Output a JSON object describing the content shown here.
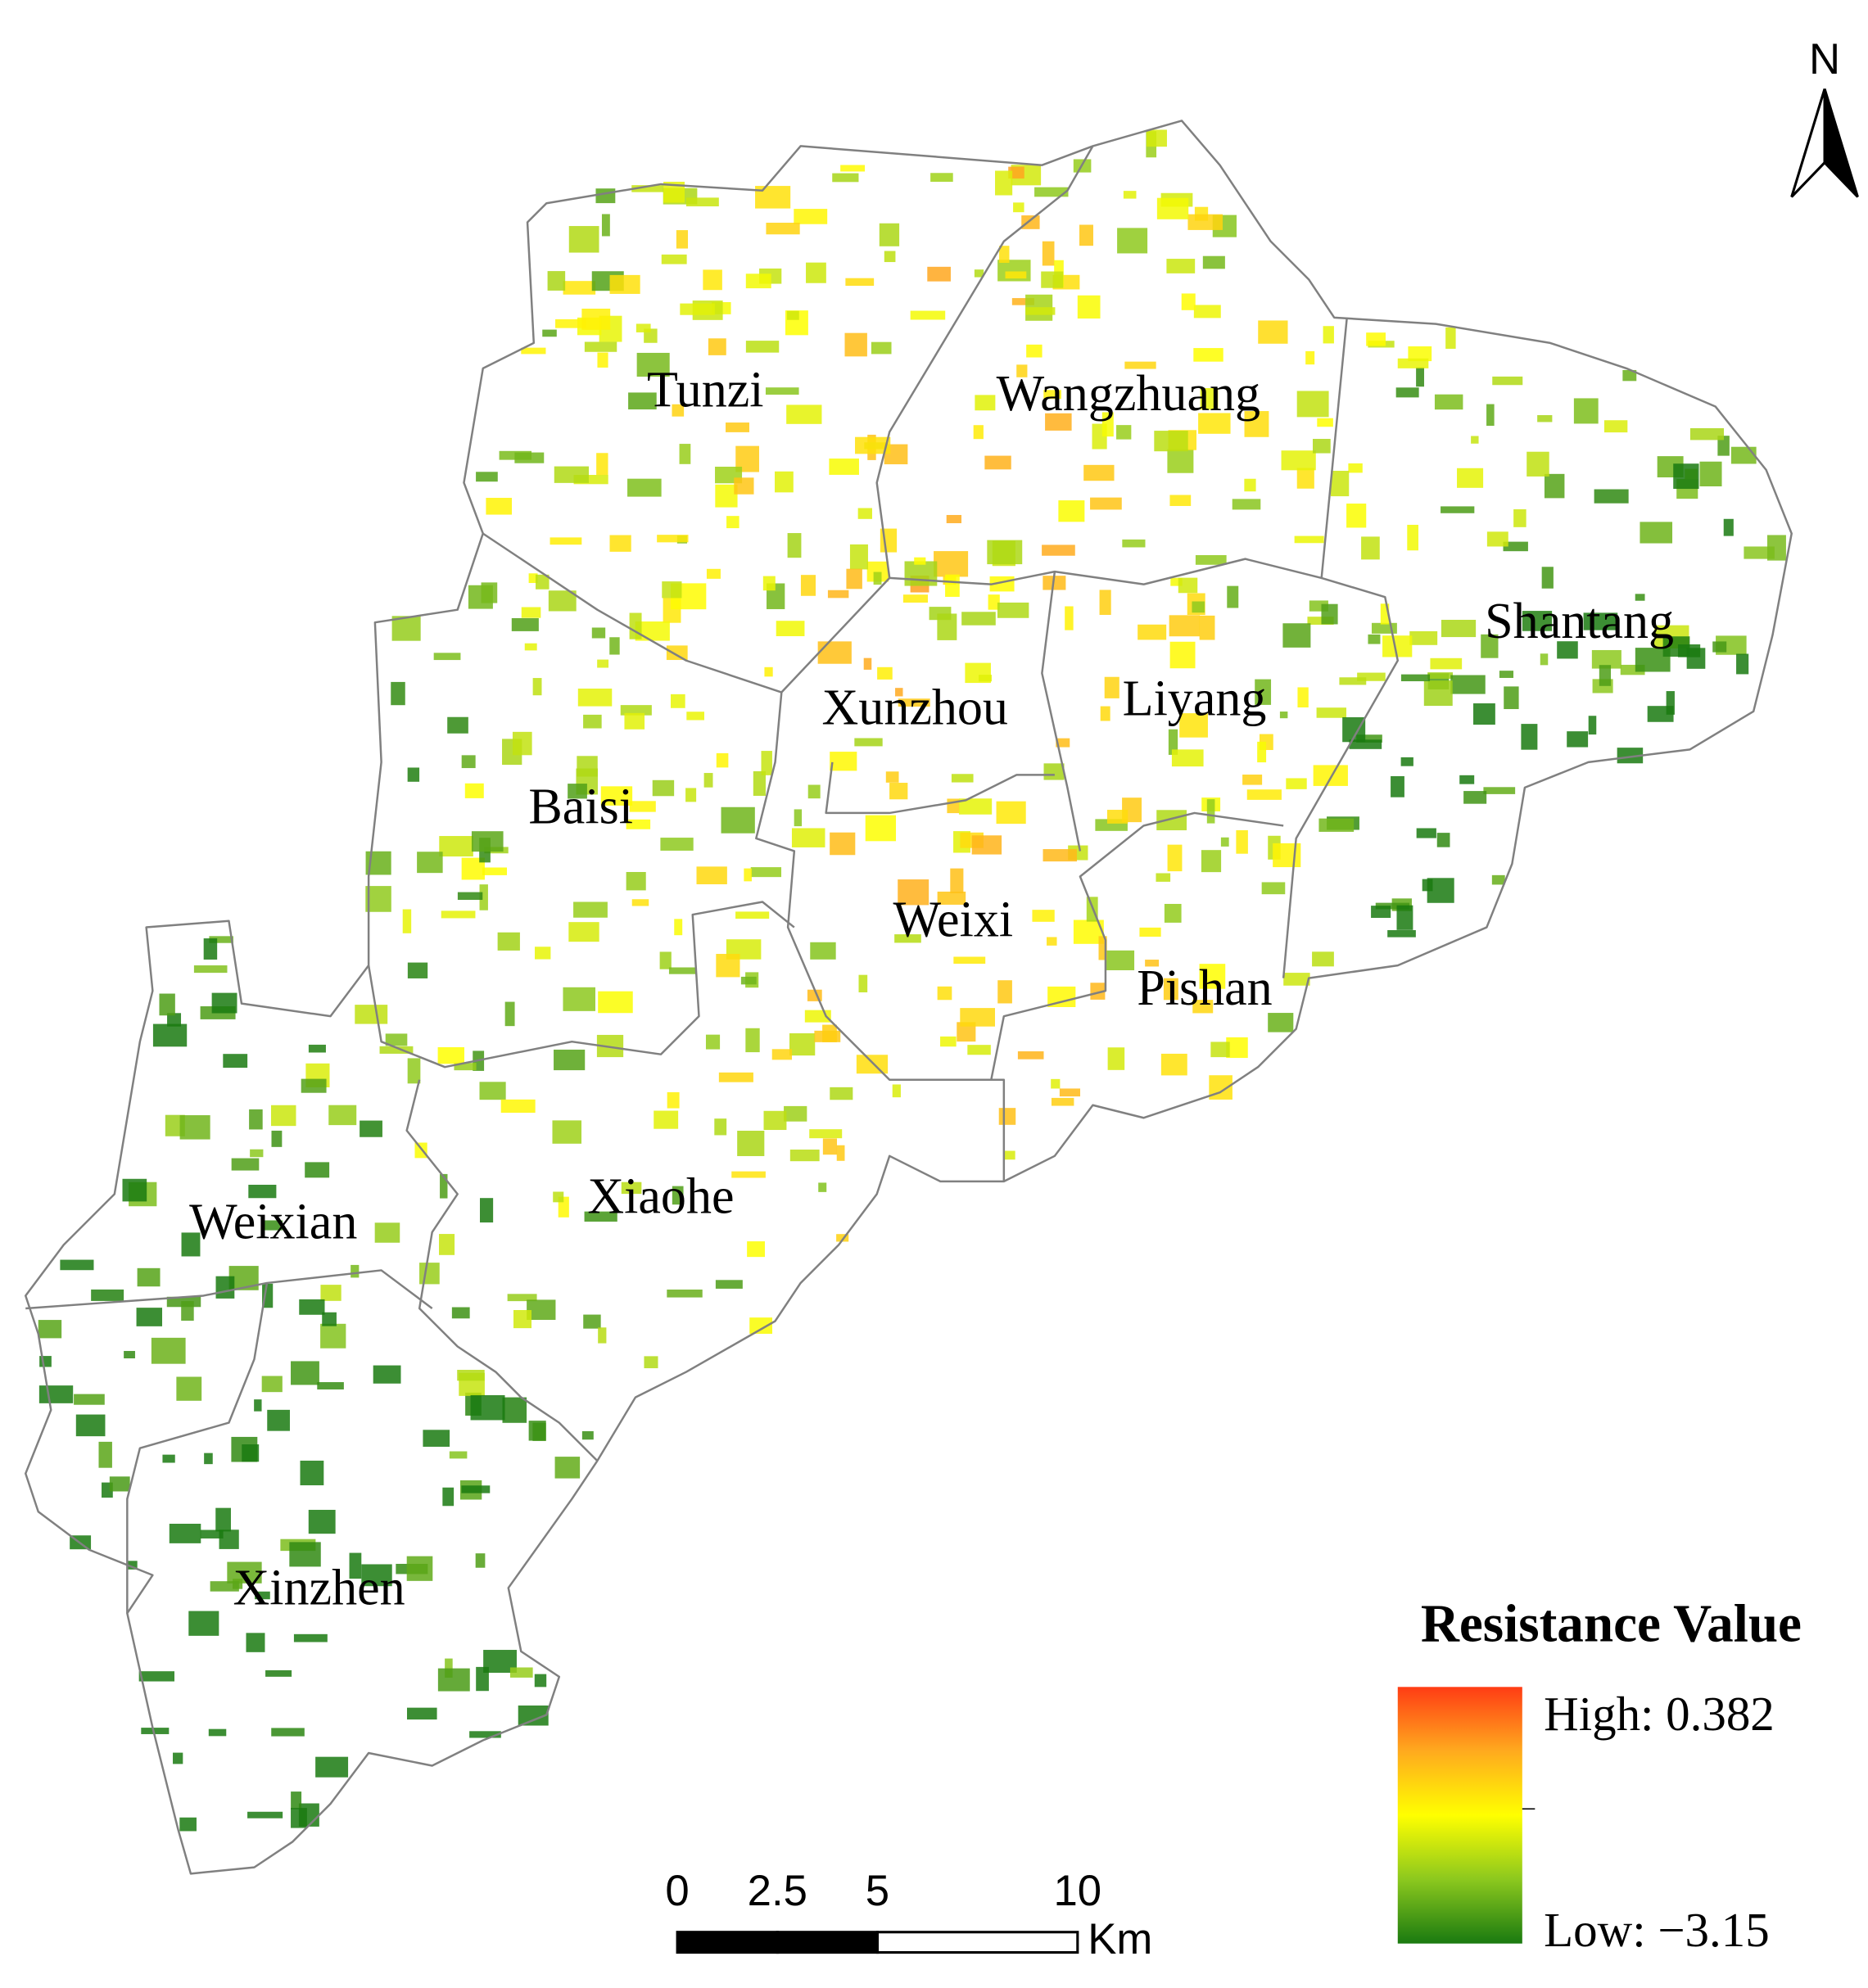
{
  "north": "N",
  "regions": [
    {
      "label": "Tunzi"
    },
    {
      "label": "Wangzhuang"
    },
    {
      "label": "Shantang"
    },
    {
      "label": "Xunzhou"
    },
    {
      "label": "Liyang"
    },
    {
      "label": "Baisi"
    },
    {
      "label": "Weixi"
    },
    {
      "label": "Pishan"
    },
    {
      "label": "Weixian"
    },
    {
      "label": "Xiaohe"
    },
    {
      "label": "Xinzhen"
    }
  ],
  "legend": {
    "title": "Resistance Value",
    "high": "High: 0.382",
    "low": "Low: −3.15"
  },
  "scale_bar": {
    "ticks": [
      0,
      2.5,
      5,
      10
    ],
    "unit": "Km"
  }
}
